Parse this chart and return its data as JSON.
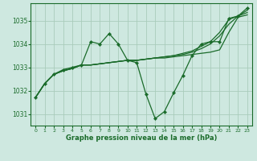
{
  "background_color": "#cee8e0",
  "grid_color": "#aaccbb",
  "line_color": "#1a6b2a",
  "xlabel": "Graphe pression niveau de la mer (hPa)",
  "xlim": [
    -0.5,
    23.5
  ],
  "ylim": [
    1030.5,
    1035.75
  ],
  "yticks": [
    1031,
    1032,
    1033,
    1034,
    1035
  ],
  "xticks": [
    0,
    1,
    2,
    3,
    4,
    5,
    6,
    7,
    8,
    9,
    10,
    11,
    12,
    13,
    14,
    15,
    16,
    17,
    18,
    19,
    20,
    21,
    22,
    23
  ],
  "line1": {
    "x": [
      0,
      1,
      2,
      3,
      4,
      5,
      6,
      7,
      8,
      9,
      10,
      11,
      12,
      13,
      14,
      15,
      16,
      17,
      18,
      19,
      20,
      21,
      22,
      23
    ],
    "y": [
      1031.7,
      1032.3,
      1032.7,
      1032.85,
      1032.95,
      1033.1,
      1033.1,
      1033.15,
      1033.2,
      1033.25,
      1033.3,
      1033.3,
      1033.35,
      1033.4,
      1033.4,
      1033.45,
      1033.5,
      1033.55,
      1033.6,
      1033.65,
      1033.75,
      1034.5,
      1035.15,
      1035.25
    ]
  },
  "line2": {
    "x": [
      0,
      1,
      2,
      3,
      4,
      5,
      6,
      7,
      8,
      9,
      10,
      11,
      12,
      13,
      14,
      15,
      16,
      17,
      18,
      19,
      20,
      21,
      22,
      23
    ],
    "y": [
      1031.7,
      1032.3,
      1032.7,
      1032.85,
      1032.95,
      1033.1,
      1033.1,
      1033.15,
      1033.2,
      1033.25,
      1033.3,
      1033.3,
      1033.35,
      1033.4,
      1033.45,
      1033.5,
      1033.55,
      1033.65,
      1033.8,
      1034.0,
      1034.35,
      1034.85,
      1035.2,
      1035.35
    ]
  },
  "line3": {
    "x": [
      0,
      1,
      2,
      3,
      4,
      5,
      6,
      7,
      8,
      9,
      10,
      11,
      12,
      13,
      14,
      15,
      16,
      17,
      18,
      19,
      20,
      21,
      22,
      23
    ],
    "y": [
      1031.7,
      1032.3,
      1032.7,
      1032.85,
      1032.95,
      1033.1,
      1033.1,
      1033.15,
      1033.2,
      1033.25,
      1033.3,
      1033.3,
      1033.35,
      1033.4,
      1033.45,
      1033.5,
      1033.6,
      1033.7,
      1033.9,
      1034.1,
      1034.5,
      1035.05,
      1035.2,
      1035.45
    ]
  },
  "line4_marker": {
    "x": [
      0,
      1,
      2,
      3,
      4,
      5,
      6,
      7,
      8,
      9,
      10,
      11,
      12,
      13,
      14,
      15,
      16,
      17,
      18,
      19,
      20,
      21,
      22,
      23
    ],
    "y": [
      1031.7,
      1032.3,
      1032.7,
      1032.9,
      1033.0,
      1033.1,
      1034.1,
      1034.0,
      1034.45,
      1034.0,
      1033.3,
      1033.2,
      1031.85,
      1030.8,
      1031.1,
      1031.9,
      1032.65,
      1033.5,
      1034.0,
      1034.1,
      1034.1,
      1035.1,
      1035.2,
      1035.55
    ]
  }
}
